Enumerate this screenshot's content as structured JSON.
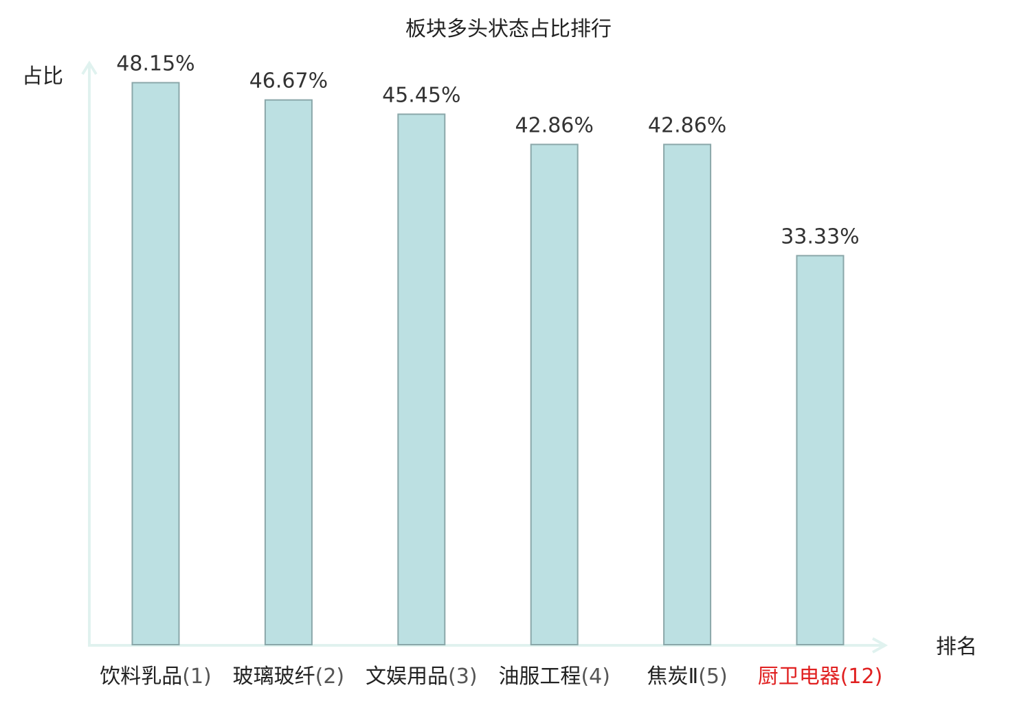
{
  "chart_data": {
    "type": "bar",
    "title": "板块多头状态占比排行",
    "xlabel": "排名",
    "ylabel": "占比",
    "ylim": [
      0,
      50
    ],
    "unit": "%",
    "categories": [
      "饮料乳品(1)",
      "玻璃玻纤(2)",
      "文娱用品(3)",
      "油服工程(4)",
      "焦炭Ⅱ(5)",
      "厨卫电器(12)"
    ],
    "category_names": [
      "饮料乳品",
      "玻璃玻纤",
      "文娱用品",
      "油服工程",
      "焦炭Ⅱ",
      "厨卫电器"
    ],
    "category_ranks": [
      "(1)",
      "(2)",
      "(3)",
      "(4)",
      "(5)",
      "(12)"
    ],
    "values": [
      48.15,
      46.67,
      45.45,
      42.86,
      42.86,
      33.33
    ],
    "value_labels": [
      "48.15%",
      "46.67%",
      "45.45%",
      "42.86%",
      "42.86%",
      "33.33%"
    ],
    "highlight_index": 5,
    "colors": {
      "bar_fill": "#bce0e2",
      "bar_stroke": "#8aa7a9",
      "axis": "#e0f2ef",
      "highlight": "#e02020",
      "text": "#222222",
      "rank_text": "#555555"
    }
  }
}
